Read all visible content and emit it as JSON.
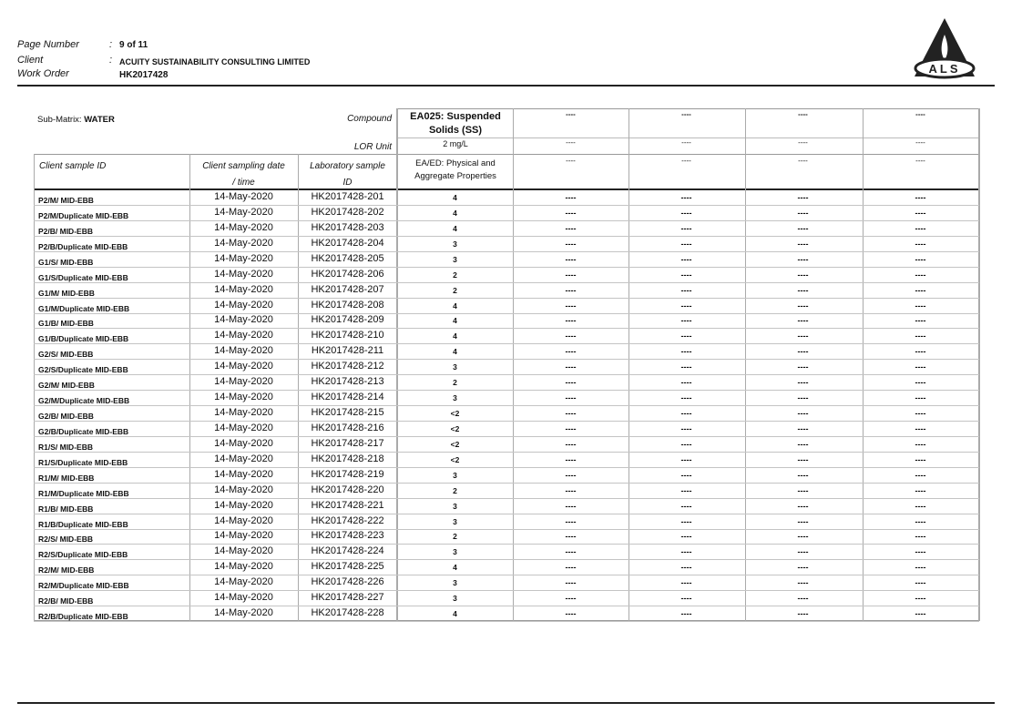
{
  "header": {
    "page_number_label": "Page Number",
    "page_number": "9 of 11",
    "client_label": "Client",
    "client": "ACUITY SUSTAINABILITY CONSULTING LIMITED",
    "work_order_label": "Work Order",
    "work_order": "HK2017428",
    "logo_text": "ALS"
  },
  "table": {
    "sub_matrix_label": "Sub-Matrix:",
    "sub_matrix": "WATER",
    "compound_label": "Compound",
    "lor_unit_label": "LOR Unit",
    "col_sample_id": "Client sample ID",
    "col_date_1": "Client sampling date",
    "col_date_2": "/ time",
    "col_lab_1": "Laboratory sample",
    "col_lab_2": "ID",
    "compound": "EA025: Suspended Solids (SS)",
    "lor_unit": "2 mg/L",
    "method": "EA/ED: Physical and Aggregate Properties",
    "empty_compound": "----",
    "empty_cell": "----",
    "rows": [
      {
        "id": "P2/M/ MID-EBB",
        "date": "14-May-2020",
        "lab": "HK2017428-201",
        "result": "4"
      },
      {
        "id": "P2/M/Duplicate MID-EBB",
        "date": "14-May-2020",
        "lab": "HK2017428-202",
        "result": "4"
      },
      {
        "id": "P2/B/ MID-EBB",
        "date": "14-May-2020",
        "lab": "HK2017428-203",
        "result": "4"
      },
      {
        "id": "P2/B/Duplicate MID-EBB",
        "date": "14-May-2020",
        "lab": "HK2017428-204",
        "result": "3"
      },
      {
        "id": "G1/S/ MID-EBB",
        "date": "14-May-2020",
        "lab": "HK2017428-205",
        "result": "3"
      },
      {
        "id": "G1/S/Duplicate MID-EBB",
        "date": "14-May-2020",
        "lab": "HK2017428-206",
        "result": "2"
      },
      {
        "id": "G1/M/ MID-EBB",
        "date": "14-May-2020",
        "lab": "HK2017428-207",
        "result": "2"
      },
      {
        "id": "G1/M/Duplicate MID-EBB",
        "date": "14-May-2020",
        "lab": "HK2017428-208",
        "result": "4"
      },
      {
        "id": "G1/B/ MID-EBB",
        "date": "14-May-2020",
        "lab": "HK2017428-209",
        "result": "4"
      },
      {
        "id": "G1/B/Duplicate MID-EBB",
        "date": "14-May-2020",
        "lab": "HK2017428-210",
        "result": "4"
      },
      {
        "id": "G2/S/ MID-EBB",
        "date": "14-May-2020",
        "lab": "HK2017428-211",
        "result": "4"
      },
      {
        "id": "G2/S/Duplicate MID-EBB",
        "date": "14-May-2020",
        "lab": "HK2017428-212",
        "result": "3"
      },
      {
        "id": "G2/M/ MID-EBB",
        "date": "14-May-2020",
        "lab": "HK2017428-213",
        "result": "2"
      },
      {
        "id": "G2/M/Duplicate MID-EBB",
        "date": "14-May-2020",
        "lab": "HK2017428-214",
        "result": "3"
      },
      {
        "id": "G2/B/ MID-EBB",
        "date": "14-May-2020",
        "lab": "HK2017428-215",
        "result": "<2"
      },
      {
        "id": "G2/B/Duplicate MID-EBB",
        "date": "14-May-2020",
        "lab": "HK2017428-216",
        "result": "<2"
      },
      {
        "id": "R1/S/ MID-EBB",
        "date": "14-May-2020",
        "lab": "HK2017428-217",
        "result": "<2"
      },
      {
        "id": "R1/S/Duplicate MID-EBB",
        "date": "14-May-2020",
        "lab": "HK2017428-218",
        "result": "<2"
      },
      {
        "id": "R1/M/ MID-EBB",
        "date": "14-May-2020",
        "lab": "HK2017428-219",
        "result": "3"
      },
      {
        "id": "R1/M/Duplicate MID-EBB",
        "date": "14-May-2020",
        "lab": "HK2017428-220",
        "result": "2"
      },
      {
        "id": "R1/B/ MID-EBB",
        "date": "14-May-2020",
        "lab": "HK2017428-221",
        "result": "3"
      },
      {
        "id": "R1/B/Duplicate MID-EBB",
        "date": "14-May-2020",
        "lab": "HK2017428-222",
        "result": "3"
      },
      {
        "id": "R2/S/ MID-EBB",
        "date": "14-May-2020",
        "lab": "HK2017428-223",
        "result": "2"
      },
      {
        "id": "R2/S/Duplicate MID-EBB",
        "date": "14-May-2020",
        "lab": "HK2017428-224",
        "result": "3"
      },
      {
        "id": "R2/M/ MID-EBB",
        "date": "14-May-2020",
        "lab": "HK2017428-225",
        "result": "4"
      },
      {
        "id": "R2/M/Duplicate MID-EBB",
        "date": "14-May-2020",
        "lab": "HK2017428-226",
        "result": "3"
      },
      {
        "id": "R2/B/ MID-EBB",
        "date": "14-May-2020",
        "lab": "HK2017428-227",
        "result": "3"
      },
      {
        "id": "R2/B/Duplicate MID-EBB",
        "date": "14-May-2020",
        "lab": "HK2017428-228",
        "result": "4"
      }
    ]
  }
}
